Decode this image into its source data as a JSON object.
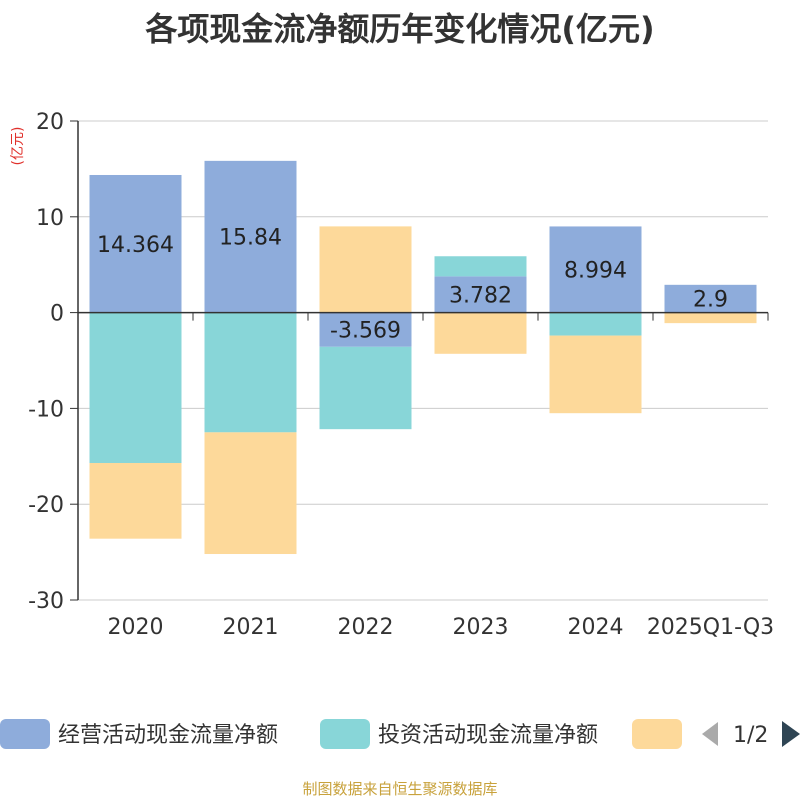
{
  "chart_data": {
    "type": "bar",
    "stacked": true,
    "title": "各项现金流净额历年变化情况(亿元)",
    "ylabel": "(亿元)",
    "categories": [
      "2020",
      "2021",
      "2022",
      "2023",
      "2024",
      "2025Q1-Q3"
    ],
    "ylim": [
      -30,
      20
    ],
    "yticks": [
      20,
      10,
      0,
      -10,
      -20,
      -30
    ],
    "grid": true,
    "series": [
      {
        "name": "经营活动现金流量净额",
        "color": "#8eacdb",
        "values": [
          14.364,
          15.84,
          -3.569,
          3.782,
          8.994,
          2.9
        ]
      },
      {
        "name": "投资活动现金流量净额",
        "color": "#88d6d8",
        "values": [
          -15.7,
          -12.5,
          -8.6,
          2.1,
          -2.4,
          0
        ]
      },
      {
        "name": "",
        "color": "#fdd99a",
        "values": [
          -7.9,
          -12.7,
          9.0,
          -4.3,
          -8.1,
          -1.1
        ]
      }
    ],
    "data_labels_series": 0,
    "legend": {
      "position": "bottom",
      "page": "1/2"
    }
  },
  "source": "制图数据来自恒生聚源数据库"
}
